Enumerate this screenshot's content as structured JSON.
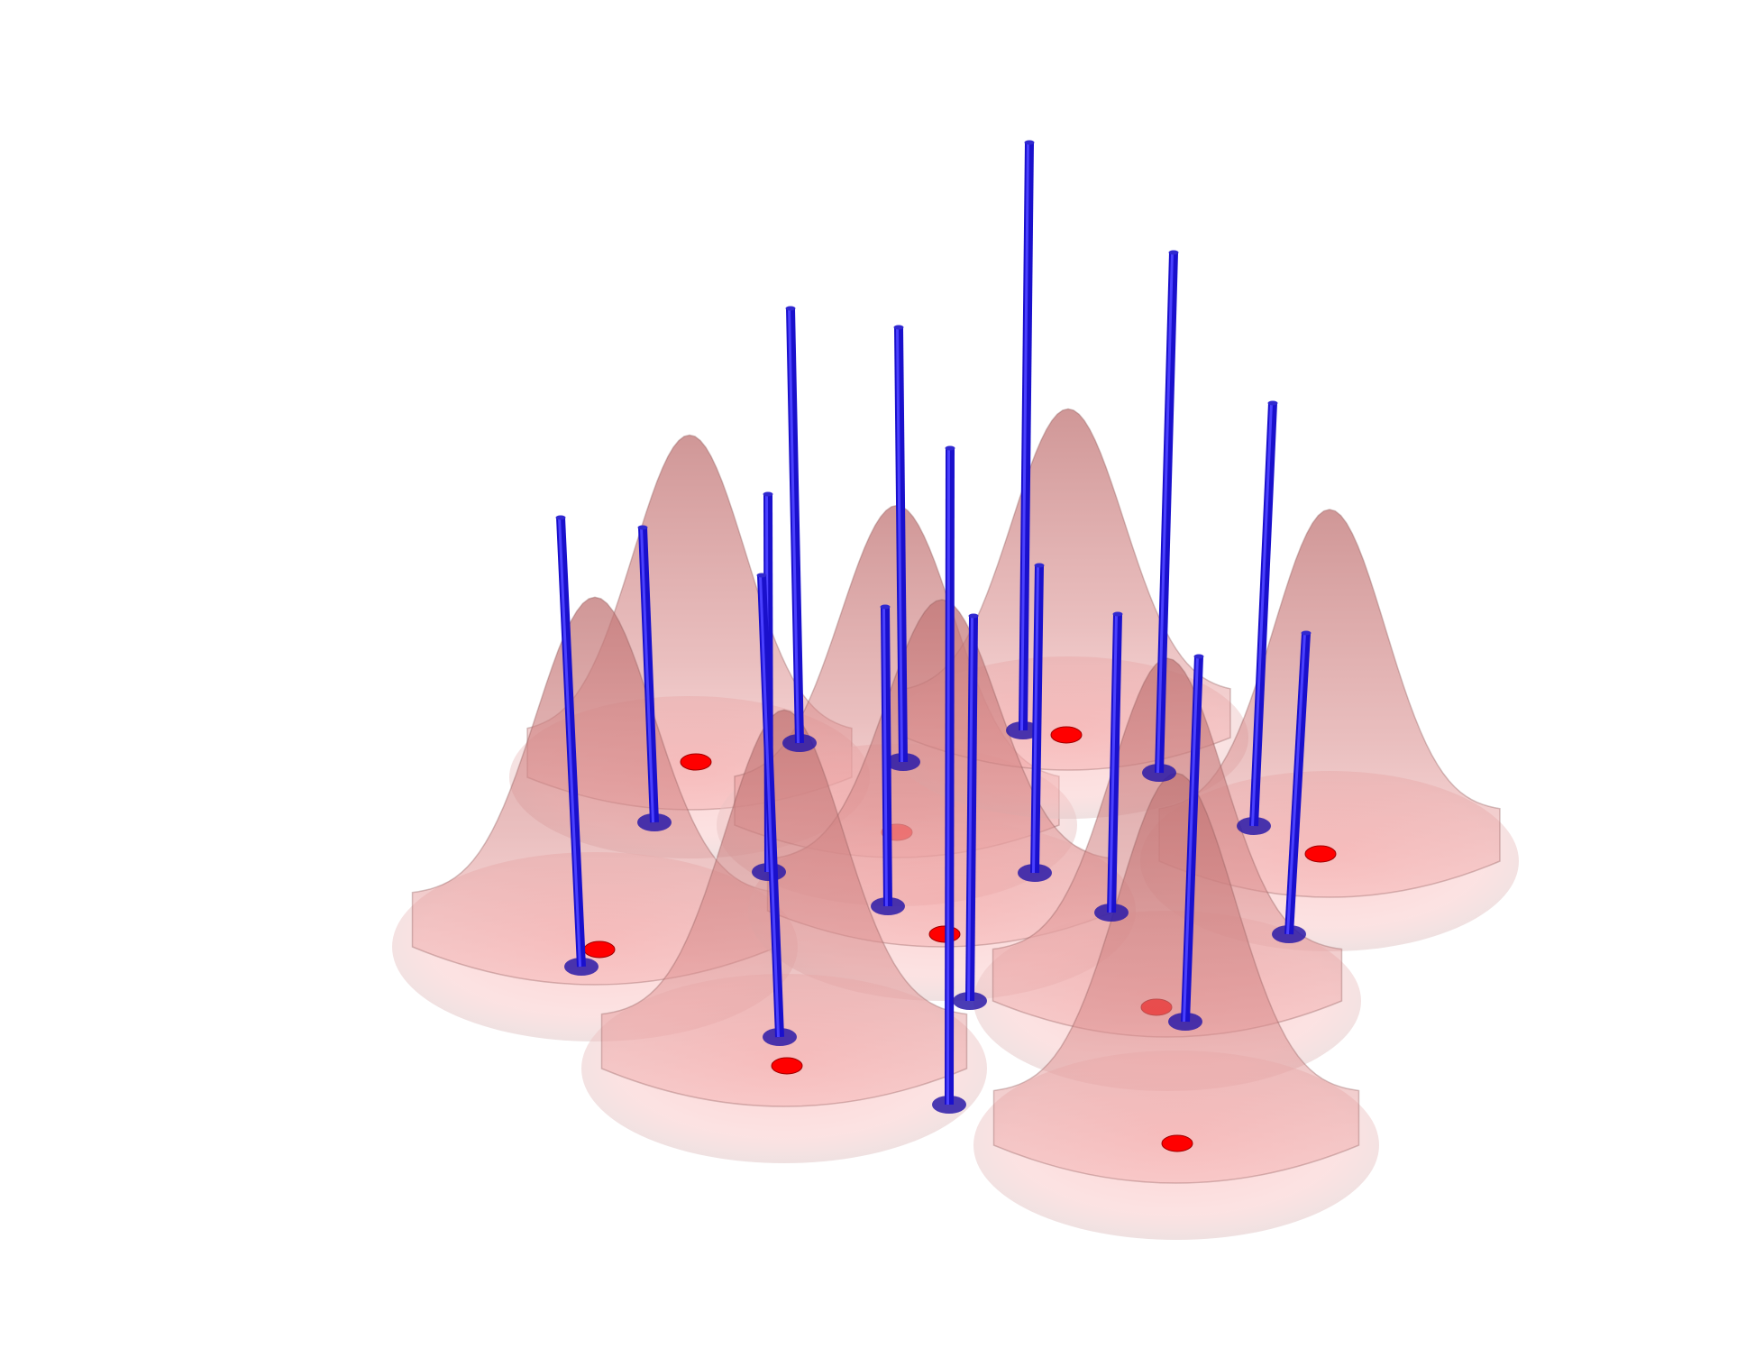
{
  "colors": {
    "background": "#ffffff",
    "gaussian_fill": "#f08080",
    "gaussian_edge": "#8c5a5a",
    "center_dot": "#ff0000",
    "stick": "#1a10cc",
    "stick_cap": "#2a1aa8"
  },
  "figure": {
    "description_type": "3d-gaussian-mixture-with-sample-sticks"
  },
  "gaussians": [
    {
      "id": "g-back-left",
      "order": 1
    },
    {
      "id": "g-back-mid",
      "order": 2
    },
    {
      "id": "g-back-right",
      "order": 3
    },
    {
      "id": "g-front-left",
      "order": 4
    },
    {
      "id": "g-center",
      "order": 5
    },
    {
      "id": "g-right",
      "order": 6
    },
    {
      "id": "g-front-mid",
      "order": 7
    },
    {
      "id": "g-right-mid",
      "order": 8
    },
    {
      "id": "g-front-right",
      "order": 9
    }
  ],
  "samples": [
    {
      "id": "s1"
    },
    {
      "id": "s2"
    },
    {
      "id": "s3"
    },
    {
      "id": "s4"
    },
    {
      "id": "s5"
    },
    {
      "id": "s6"
    },
    {
      "id": "s7"
    },
    {
      "id": "s8"
    },
    {
      "id": "s9"
    },
    {
      "id": "s10"
    },
    {
      "id": "s11"
    },
    {
      "id": "s12"
    },
    {
      "id": "s13"
    },
    {
      "id": "s14"
    },
    {
      "id": "s15"
    },
    {
      "id": "s16"
    }
  ]
}
